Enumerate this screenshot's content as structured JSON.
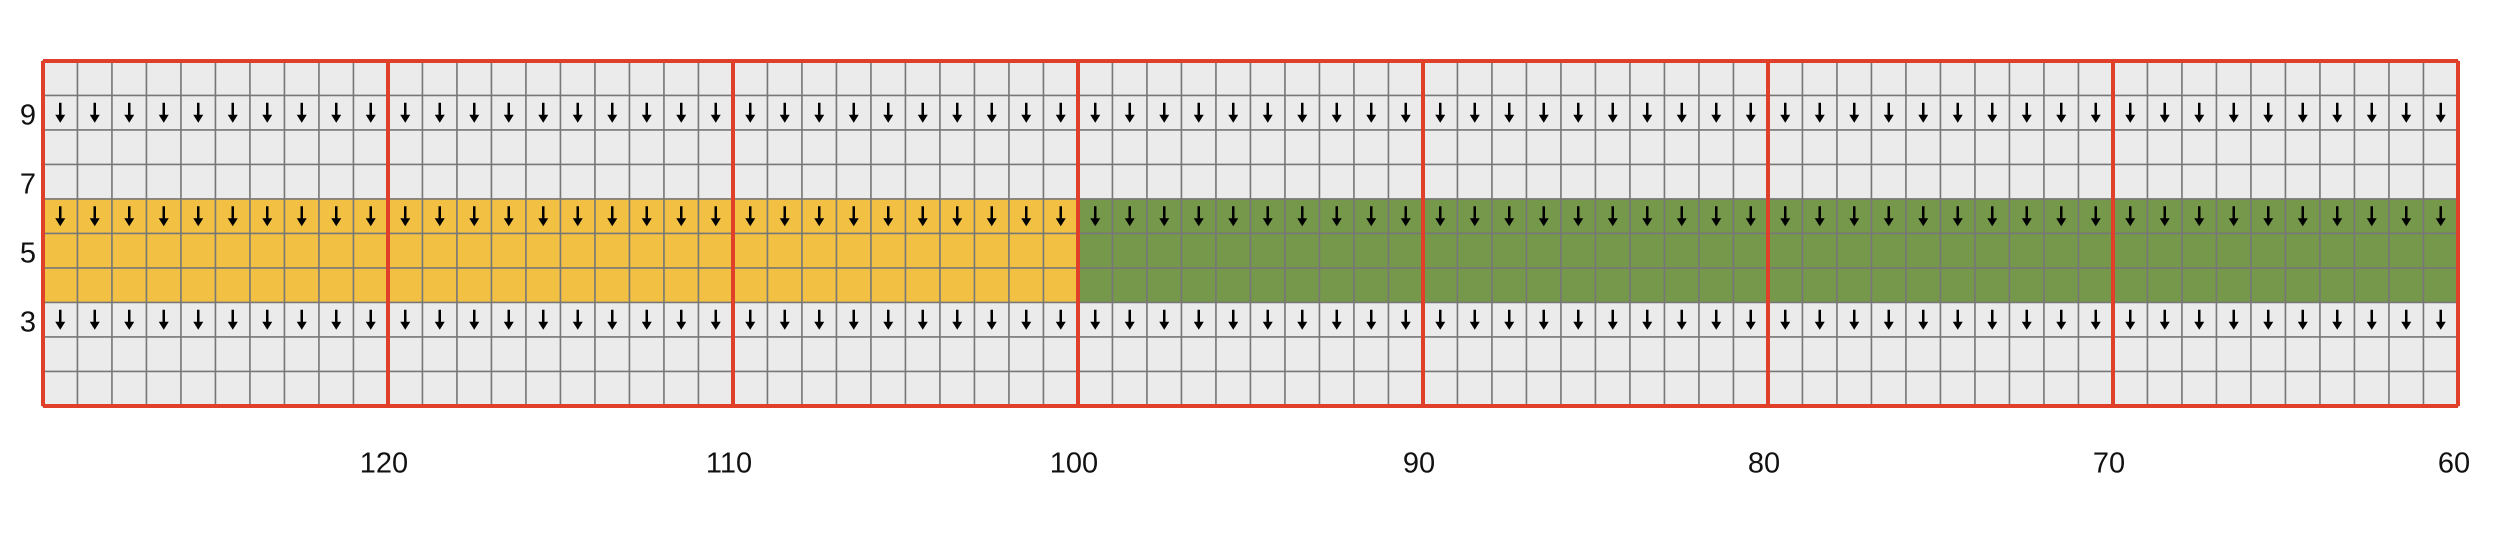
{
  "column_labels": [
    120,
    110,
    100,
    90,
    80,
    70,
    60
  ],
  "row_labels": [
    9,
    7,
    5,
    3
  ]
}
